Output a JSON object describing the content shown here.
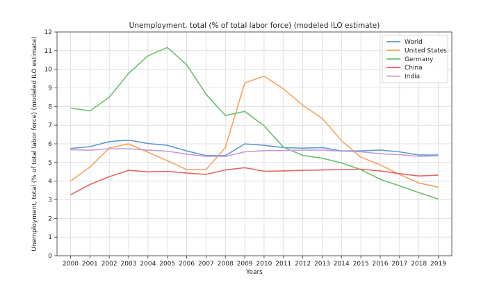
{
  "chart_data": {
    "type": "line",
    "title": "Unemployment, total (% of total labor force) (modeled ILO estimate)",
    "xlabel": "Years",
    "ylabel": "Unemployment, total (% of total labor force) (modeled ILO estimate)",
    "ylim": [
      0,
      12
    ],
    "yticks": [
      0,
      1,
      2,
      3,
      4,
      5,
      6,
      7,
      8,
      9,
      10,
      11,
      12
    ],
    "grid": true,
    "legend_position": "top-right",
    "x": [
      2000,
      2001,
      2002,
      2003,
      2004,
      2005,
      2006,
      2007,
      2008,
      2009,
      2010,
      2011,
      2012,
      2013,
      2014,
      2015,
      2016,
      2017,
      2018,
      2019
    ],
    "series": [
      {
        "name": "World",
        "color": "#5b9bd0",
        "values": [
          5.75,
          5.85,
          6.12,
          6.2,
          6.02,
          5.92,
          5.62,
          5.37,
          5.37,
          6.0,
          5.92,
          5.8,
          5.77,
          5.8,
          5.62,
          5.62,
          5.67,
          5.57,
          5.4,
          5.4
        ]
      },
      {
        "name": "United States",
        "color": "#f7a35c",
        "values": [
          4.0,
          4.75,
          5.78,
          6.0,
          5.55,
          5.1,
          4.62,
          4.62,
          5.8,
          9.27,
          9.63,
          8.95,
          8.07,
          7.37,
          6.17,
          5.29,
          4.87,
          4.36,
          3.9,
          3.68
        ]
      },
      {
        "name": "Germany",
        "color": "#6cbe6c",
        "values": [
          7.92,
          7.77,
          8.5,
          9.78,
          10.72,
          11.17,
          10.25,
          8.66,
          7.52,
          7.74,
          6.97,
          5.82,
          5.38,
          5.23,
          4.98,
          4.62,
          4.1,
          3.75,
          3.38,
          3.04
        ]
      },
      {
        "name": "China",
        "color": "#e06666",
        "values": [
          3.27,
          3.82,
          4.24,
          4.58,
          4.5,
          4.52,
          4.44,
          4.36,
          4.6,
          4.72,
          4.53,
          4.55,
          4.58,
          4.6,
          4.62,
          4.64,
          4.55,
          4.4,
          4.28,
          4.32
        ]
      },
      {
        "name": "India",
        "color": "#c39bd6",
        "values": [
          5.68,
          5.66,
          5.74,
          5.74,
          5.66,
          5.61,
          5.45,
          5.33,
          5.33,
          5.57,
          5.64,
          5.64,
          5.66,
          5.66,
          5.61,
          5.57,
          5.47,
          5.42,
          5.33,
          5.36
        ]
      }
    ]
  }
}
